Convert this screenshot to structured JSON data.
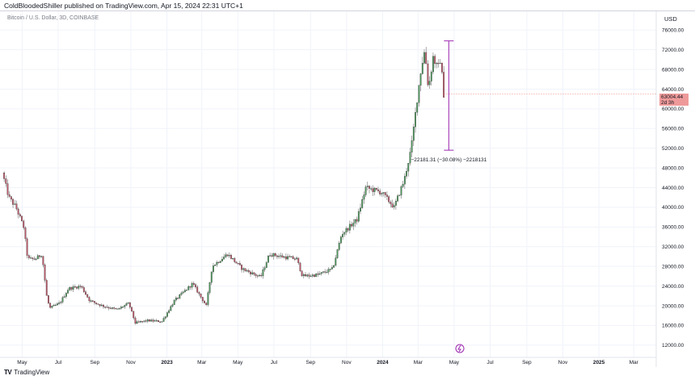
{
  "header": {
    "published": "ColdBloodedShiller published on TradingView.com, Apr 15, 2024 22:31 UTC+1"
  },
  "chart_header": {
    "symbol": "Bitcoin / U.S. Dollar, 3D, COINBASE",
    "currency": "USD"
  },
  "price_badge": {
    "price": "63004.44",
    "countdown": "2d 3h",
    "color": "#ef9a9a"
  },
  "measure": {
    "label": "−22181.31 (−30.08%) −2218131",
    "color": "#9c27b0"
  },
  "footer": {
    "logo_mark": "TV",
    "brand": "TradingView"
  },
  "colors": {
    "up": "#26a69a",
    "down": "#ef5350",
    "up_candle": "#4c9a5c",
    "down_candle": "#c1576a",
    "grid": "#f0f3fa",
    "axis_text": "#131722"
  },
  "chart_data": {
    "type": "candlestick",
    "title": "",
    "y_axis": {
      "position": "right",
      "ticks": [
        12000,
        16000,
        20000,
        24000,
        28000,
        32000,
        36000,
        40000,
        44000,
        48000,
        52000,
        56000,
        60000,
        64000,
        68000,
        72000,
        76000
      ],
      "tick_labels": [
        "12000.00",
        "16000.00",
        "20000.00",
        "24000.00",
        "28000.00",
        "32000.00",
        "36000.00",
        "40000.00",
        "44000.00",
        "48000.00",
        "52000.00",
        "56000.00",
        "60000.00",
        "64000.00",
        "68000.00",
        "72000.00",
        "76000.00"
      ],
      "range": [
        10000,
        78500
      ]
    },
    "x_axis": {
      "tick_labels": [
        "May",
        "Jul",
        "Sep",
        "Nov",
        "2023",
        "Mar",
        "May",
        "Jul",
        "Sep",
        "Nov",
        "2024",
        "Mar",
        "May",
        "Jul",
        "Sep",
        "Nov",
        "2025",
        "Mar"
      ],
      "tick_dates": [
        "2022-05-01",
        "2022-07-01",
        "2022-09-01",
        "2022-11-01",
        "2023-01-01",
        "2023-03-01",
        "2023-05-01",
        "2023-07-01",
        "2023-09-01",
        "2023-11-01",
        "2024-01-01",
        "2024-03-01",
        "2024-05-01",
        "2024-07-01",
        "2024-09-01",
        "2024-11-01",
        "2025-01-01",
        "2025-03-01"
      ],
      "range": [
        "2022-03-30",
        "2025-04-08"
      ]
    },
    "series_points": [
      [
        "2022-03-30",
        47000
      ],
      [
        "2022-04-10",
        42000
      ],
      [
        "2022-04-22",
        40000
      ],
      [
        "2022-05-05",
        36000
      ],
      [
        "2022-05-12",
        29500
      ],
      [
        "2022-05-25",
        29500
      ],
      [
        "2022-06-05",
        30500
      ],
      [
        "2022-06-13",
        22000
      ],
      [
        "2022-06-18",
        19500
      ],
      [
        "2022-07-05",
        20500
      ],
      [
        "2022-07-20",
        23500
      ],
      [
        "2022-08-10",
        24000
      ],
      [
        "2022-08-25",
        21000
      ],
      [
        "2022-09-15",
        20000
      ],
      [
        "2022-10-10",
        19200
      ],
      [
        "2022-10-30",
        20500
      ],
      [
        "2022-11-10",
        16500
      ],
      [
        "2022-12-01",
        17000
      ],
      [
        "2022-12-25",
        16800
      ],
      [
        "2023-01-15",
        21000
      ],
      [
        "2023-02-15",
        24500
      ],
      [
        "2023-03-10",
        20000
      ],
      [
        "2023-03-20",
        28000
      ],
      [
        "2023-04-15",
        30500
      ],
      [
        "2023-05-10",
        27500
      ],
      [
        "2023-06-10",
        25800
      ],
      [
        "2023-06-25",
        30500
      ],
      [
        "2023-07-15",
        30000
      ],
      [
        "2023-08-10",
        29500
      ],
      [
        "2023-08-20",
        26000
      ],
      [
        "2023-09-15",
        26300
      ],
      [
        "2023-10-10",
        27500
      ],
      [
        "2023-10-25",
        34500
      ],
      [
        "2023-11-20",
        37500
      ],
      [
        "2023-12-05",
        44000
      ],
      [
        "2024-01-01",
        43000
      ],
      [
        "2024-01-22",
        40000
      ],
      [
        "2024-02-08",
        45500
      ],
      [
        "2024-02-20",
        52000
      ],
      [
        "2024-03-01",
        62000
      ],
      [
        "2024-03-08",
        68500
      ],
      [
        "2024-03-14",
        72000
      ],
      [
        "2024-03-20",
        64000
      ],
      [
        "2024-03-28",
        70500
      ],
      [
        "2024-04-05",
        68000
      ],
      [
        "2024-04-10",
        70500
      ],
      [
        "2024-04-14",
        63004
      ]
    ],
    "last_price": 63004.44,
    "measure_range": {
      "top": 73800,
      "bottom": 51600,
      "x_date": "2024-04-22"
    }
  }
}
